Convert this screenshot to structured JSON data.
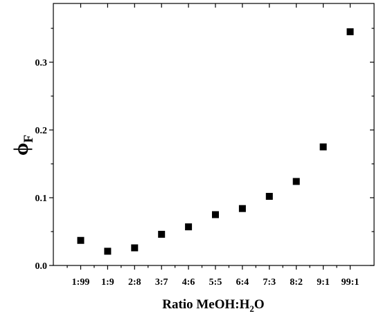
{
  "chart_data": {
    "type": "scatter",
    "title": "",
    "xlabel": {
      "main": "Ratio MeOH:H",
      "sub": "2",
      "tail": "O"
    },
    "ylabel": {
      "main": "ϕ",
      "sub": "F"
    },
    "categories": [
      "1:99",
      "1:9",
      "2:8",
      "3:7",
      "4:6",
      "5:5",
      "6:4",
      "7:3",
      "8:2",
      "9:1",
      "99:1"
    ],
    "series": [
      {
        "values": [
          0.037,
          0.021,
          0.026,
          0.046,
          0.057,
          0.075,
          0.084,
          0.102,
          0.124,
          0.175,
          0.345
        ]
      }
    ],
    "ylim": [
      0.0,
      0.37
    ],
    "yticks": [
      0.0,
      0.1,
      0.2,
      0.3
    ],
    "ytick_labels": [
      "0.0",
      "0.1",
      "0.2",
      "0.3"
    ],
    "grid": false,
    "marker": "square",
    "marker_color": "#000000"
  }
}
